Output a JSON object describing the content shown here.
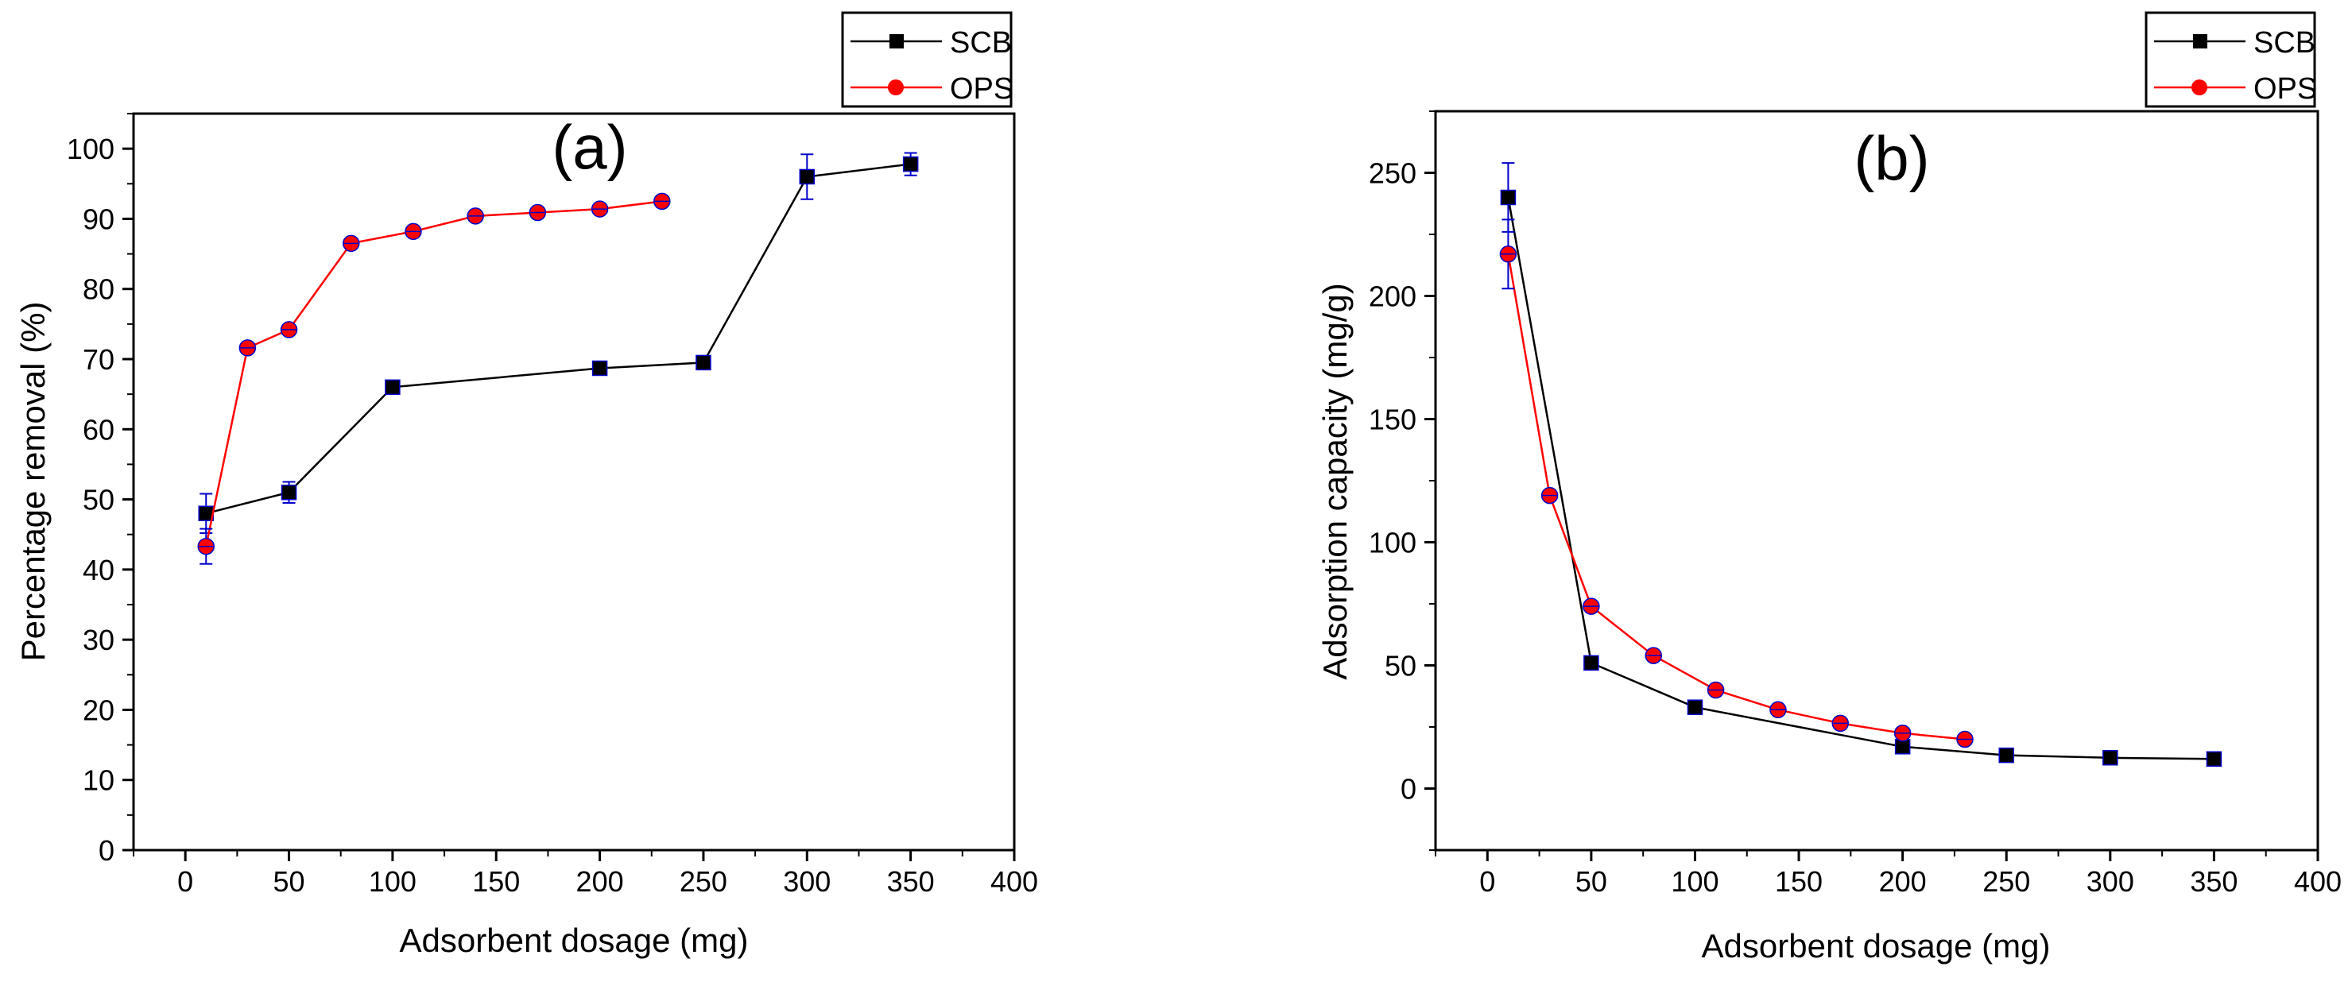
{
  "colors": {
    "scb": "#000000",
    "ops": "#ff0000",
    "errorbar": "#0000cc",
    "axis": "#000000"
  },
  "chart_data": [
    {
      "type": "line",
      "panel_label": "(a)",
      "title": "",
      "xlabel": "Adsorbent dosage (mg)",
      "ylabel": "Percentage removal (%)",
      "xlim": [
        -25,
        400
      ],
      "ylim": [
        0,
        105
      ],
      "x_ticks": [
        0,
        50,
        100,
        150,
        200,
        250,
        300,
        350,
        400
      ],
      "y_ticks": [
        0,
        10,
        20,
        30,
        40,
        50,
        60,
        70,
        80,
        90,
        100
      ],
      "grid": false,
      "legend_position": "top-right",
      "series": [
        {
          "name": "SCB",
          "marker": "square",
          "x": [
            10,
            50,
            100,
            200,
            250,
            300,
            350
          ],
          "y": [
            48,
            51,
            66,
            68.7,
            69.5,
            96,
            97.8
          ],
          "err": [
            2.8,
            1.5,
            0.8,
            0.6,
            0.9,
            3.2,
            1.6
          ]
        },
        {
          "name": "OPS",
          "marker": "circle",
          "x": [
            10,
            30,
            50,
            80,
            110,
            140,
            170,
            200,
            230
          ],
          "y": [
            43.3,
            71.6,
            74.2,
            86.5,
            88.2,
            90.4,
            90.9,
            91.4,
            92.5
          ],
          "err": [
            2.5,
            0.6,
            0.6,
            0.5,
            0.5,
            0.5,
            0.5,
            0.5,
            0.5
          ]
        }
      ]
    },
    {
      "type": "line",
      "panel_label": "(b)",
      "title": "",
      "xlabel": "Adsorbent dosage (mg)",
      "ylabel": "Adsorption capacity (mg/g)",
      "xlim": [
        -25,
        400
      ],
      "ylim": [
        -25,
        275
      ],
      "x_ticks": [
        0,
        50,
        100,
        150,
        200,
        250,
        300,
        350,
        400
      ],
      "y_ticks": [
        0,
        50,
        100,
        150,
        200,
        250
      ],
      "grid": false,
      "legend_position": "top-right",
      "series": [
        {
          "name": "SCB",
          "marker": "square",
          "x": [
            10,
            50,
            100,
            200,
            250,
            300,
            350
          ],
          "y": [
            240,
            51,
            33,
            17,
            13.5,
            12.5,
            12
          ],
          "err": [
            14,
            1.5,
            1,
            0.8,
            0.7,
            0.6,
            0.6
          ]
        },
        {
          "name": "OPS",
          "marker": "circle",
          "x": [
            10,
            30,
            50,
            80,
            110,
            140,
            170,
            200,
            230
          ],
          "y": [
            217,
            119,
            74,
            54,
            40,
            32,
            26.5,
            22.5,
            20
          ],
          "err": [
            14,
            1.5,
            1.2,
            1,
            0.8,
            0.7,
            0.6,
            0.6,
            0.5
          ]
        }
      ]
    }
  ]
}
